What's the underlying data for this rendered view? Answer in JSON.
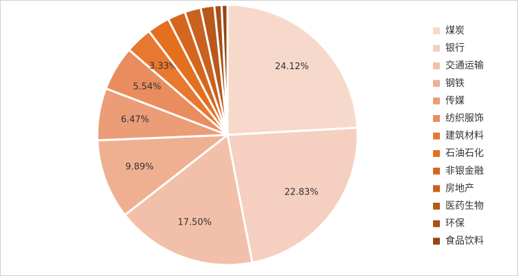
{
  "chart_data": {
    "type": "pie",
    "categories": [
      "煤炭",
      "银行",
      "交通运输",
      "钢铁",
      "传媒",
      "纺织服饰",
      "建筑材料",
      "石油石化",
      "非银金融",
      "房地产",
      "医药生物",
      "环保",
      "食品饮料"
    ],
    "values": [
      24.12,
      22.83,
      17.5,
      9.89,
      6.47,
      5.54,
      3.33,
      2.8,
      2.2,
      2.0,
      1.7,
      0.9,
      0.72
    ],
    "value_labels": [
      "24.12%",
      "22.83%",
      "17.50%",
      "9.89%",
      "6.47%",
      "5.54%",
      "3.33%",
      null,
      null,
      null,
      null,
      null,
      null
    ],
    "colors": [
      "#f7d9cc",
      "#f5cfbf",
      "#f2c0aa",
      "#efb092",
      "#eb9d78",
      "#e98d5e",
      "#e8782f",
      "#e36f1f",
      "#d4671f",
      "#c9611f",
      "#b8581b",
      "#a85017",
      "#954512"
    ],
    "legend": "right"
  }
}
